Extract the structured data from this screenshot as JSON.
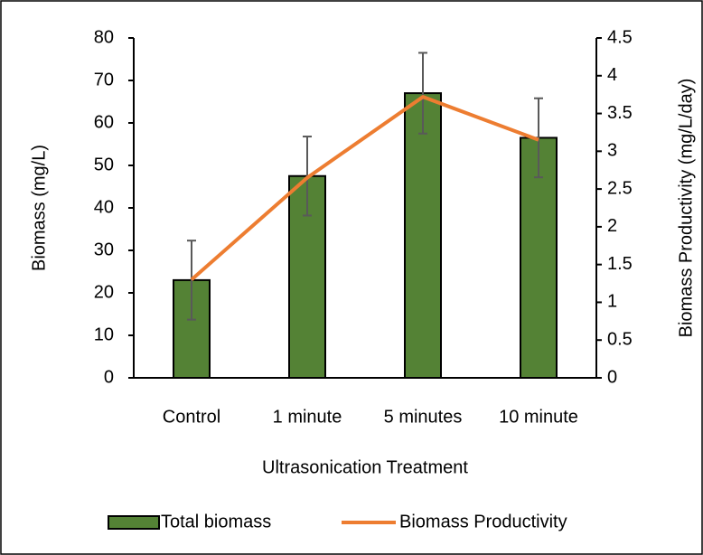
{
  "chart_data": {
    "type": "bar-line",
    "x_label": "Ultrasonication Treatment",
    "y_label": "Biomass (mg/L)",
    "y2_label": "Biomass Productivity (mg/L/day)",
    "categories": [
      "Control",
      "1 minute",
      "5 minutes",
      "10 minute"
    ],
    "series": [
      {
        "name": "Total biomass",
        "type": "bar",
        "color": "#548235",
        "values": [
          23,
          47.5,
          67,
          56.5
        ],
        "errors": [
          9.3,
          9.3,
          9.5,
          9.3
        ]
      },
      {
        "name": "Biomass Productivity",
        "type": "line",
        "axis": "y2",
        "color": "#ed7d31",
        "values": [
          1.3,
          2.65,
          3.72,
          3.15
        ]
      }
    ],
    "ylim": [
      0,
      80
    ],
    "yticks": [
      0,
      10,
      20,
      30,
      40,
      50,
      60,
      70,
      80
    ],
    "y2lim": [
      0,
      4.5
    ],
    "y2ticks": [
      0,
      0.5,
      1,
      1.5,
      2,
      2.5,
      3,
      3.5,
      4,
      4.5
    ],
    "legend": "bottom"
  }
}
